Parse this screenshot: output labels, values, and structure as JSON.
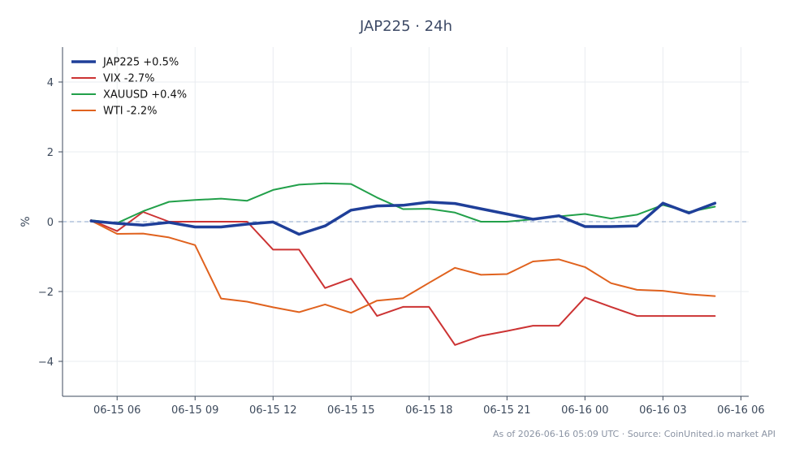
{
  "chart_data": {
    "type": "line",
    "title": "JAP225 · 24h",
    "ylabel": "%",
    "xlabel": "",
    "ylim": [
      -5,
      5
    ],
    "yticks": [
      -4,
      -2,
      0,
      2,
      4
    ],
    "ytick_labels": [
      "−4",
      "−2",
      "0",
      "2",
      "4"
    ],
    "xlim_hours": [
      -2.1,
      24.3
    ],
    "xticks_hours": [
      0,
      3,
      6,
      9,
      12,
      15,
      18,
      21,
      24
    ],
    "xtick_labels": [
      "06-15 06",
      "06-15 09",
      "06-15 12",
      "06-15 15",
      "06-15 18",
      "06-15 21",
      "06-16 00",
      "06-16 03",
      "06-16 06"
    ],
    "x_hours": [
      -1,
      0,
      1,
      2,
      3,
      4,
      5,
      6,
      7,
      8,
      9,
      10,
      11,
      12,
      13,
      14,
      15,
      16,
      17,
      18,
      19,
      20,
      21,
      22,
      23
    ],
    "grid": true,
    "zero_line": true,
    "legend_position": "top-left",
    "series": [
      {
        "name": "JAP225 +0.5%",
        "color": "#1f3f99",
        "emphasis": true,
        "values": [
          0.02,
          -0.05,
          -0.1,
          -0.02,
          -0.15,
          -0.15,
          -0.07,
          -0.01,
          -0.36,
          -0.12,
          0.33,
          0.45,
          0.47,
          0.56,
          0.52,
          0.37,
          0.22,
          0.07,
          0.17,
          -0.14,
          -0.14,
          -0.12,
          0.53,
          0.25,
          0.53
        ]
      },
      {
        "name": "VIX -2.7%",
        "color": "#cc3333",
        "values": [
          0.05,
          -0.27,
          0.28,
          0.0,
          0.0,
          0.0,
          0.0,
          -0.8,
          -0.8,
          -1.9,
          -1.63,
          -2.7,
          -2.44,
          -2.44,
          -3.53,
          -3.27,
          -3.13,
          -2.98,
          -2.98,
          -2.17,
          -2.44,
          -2.7,
          -2.7,
          -2.7,
          -2.7
        ]
      },
      {
        "name": "XAUUSD +0.4%",
        "color": "#22a04a",
        "values": [
          0.04,
          -0.04,
          0.3,
          0.57,
          0.62,
          0.66,
          0.6,
          0.91,
          1.06,
          1.1,
          1.08,
          0.69,
          0.36,
          0.37,
          0.26,
          0.0,
          0.0,
          0.07,
          0.15,
          0.22,
          0.09,
          0.2,
          0.48,
          0.28,
          0.43
        ]
      },
      {
        "name": "WTI -2.2%",
        "color": "#e0621e",
        "values": [
          0.03,
          -0.35,
          -0.34,
          -0.45,
          -0.67,
          -2.2,
          -2.29,
          -2.45,
          -2.59,
          -2.37,
          -2.61,
          -2.26,
          -2.19,
          -1.75,
          -1.32,
          -1.52,
          -1.5,
          -1.14,
          -1.08,
          -1.3,
          -1.76,
          -1.95,
          -1.98,
          -2.08,
          -2.13
        ]
      }
    ],
    "footer": "As of 2026-06-16 05:09 UTC · Source: CoinUnited.io market API"
  }
}
